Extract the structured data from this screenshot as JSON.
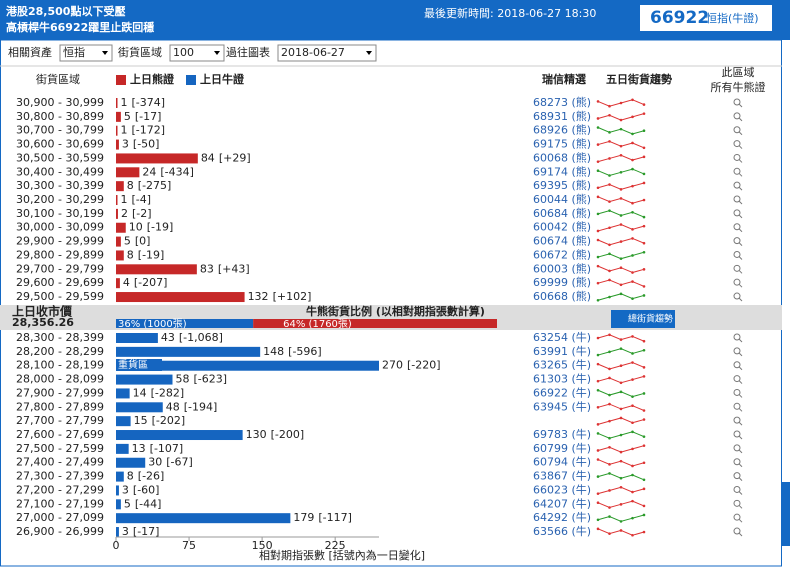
{
  "header": {
    "title_line1": "港股28,500點以下受壓",
    "title_line2": "高槓桿牛66922躍里止跌回穩",
    "updated": "最後更新時間: 2018-06-27 18:30",
    "code": "66922",
    "code_label": "恒指(牛證)"
  },
  "controls": [
    {
      "label": "相關資產",
      "value": "恒指"
    },
    {
      "label": "街貨區域",
      "value": "100"
    },
    {
      "label": "過往圖表",
      "value": "2018-06-27"
    }
  ],
  "columns": {
    "range": "街貨區域",
    "bear": "上日熊證",
    "bull": "上日牛證",
    "pick": "瑞信精選",
    "trend": "五日街貨趨勢",
    "all_line1": "此區域",
    "all_line2": "所有牛熊證"
  },
  "bear_rows": [
    {
      "range": "30,900 - 30,999",
      "value": 1,
      "change": "[-374]",
      "code": "68273 (熊)"
    },
    {
      "range": "30,800 - 30,899",
      "value": 5,
      "change": "[-17]",
      "code": "68931 (熊)"
    },
    {
      "range": "30,700 - 30,799",
      "value": 1,
      "change": "[-172]",
      "code": "68926 (熊)"
    },
    {
      "range": "30,600 - 30,699",
      "value": 3,
      "change": "[-50]",
      "code": "69175 (熊)"
    },
    {
      "range": "30,500 - 30,599",
      "value": 84,
      "change": "[+29]",
      "code": "60068 (熊)"
    },
    {
      "range": "30,400 - 30,499",
      "value": 24,
      "change": "[-434]",
      "code": "69174 (熊)"
    },
    {
      "range": "30,300 - 30,399",
      "value": 8,
      "change": "[-275]",
      "code": "69395 (熊)"
    },
    {
      "range": "30,200 - 30,299",
      "value": 1,
      "change": "[-4]",
      "code": "60044 (熊)"
    },
    {
      "range": "30,100 - 30,199",
      "value": 2,
      "change": "[-2]",
      "code": "60684 (熊)"
    },
    {
      "range": "30,000 - 30,099",
      "value": 10,
      "change": "[-19]",
      "code": "60042 (熊)"
    },
    {
      "range": "29,900 - 29,999",
      "value": 5,
      "change": "[0]",
      "code": "60674 (熊)"
    },
    {
      "range": "29,800 - 29,899",
      "value": 8,
      "change": "[-19]",
      "code": "60672 (熊)"
    },
    {
      "range": "29,700 - 29,799",
      "value": 83,
      "change": "[+43]",
      "code": "60003 (熊)"
    },
    {
      "range": "29,600 - 29,699",
      "value": 4,
      "change": "[-207]",
      "code": "69999 (熊)"
    },
    {
      "range": "29,500 - 29,599",
      "value": 132,
      "change": "[+102]",
      "code": "60668 (熊)"
    }
  ],
  "middle": {
    "close_label": "上日收市價",
    "close": "28,356.26",
    "ratio_title": "牛熊街貨比例 (以相對期指張數計算)",
    "bull_pct": 36,
    "bull_label": "36% (1000張)",
    "bear_pct": 64,
    "bear_label": "64% (1760張)",
    "button": "總街貨趨勢",
    "heavy": "重貨區"
  },
  "bull_rows": [
    {
      "range": "28,300 - 28,399",
      "value": 43,
      "change": "[-1,068]",
      "code": "63254 (牛)"
    },
    {
      "range": "28,200 - 28,299",
      "value": 148,
      "change": "[-596]",
      "code": "63991 (牛)"
    },
    {
      "range": "28,100 - 28,199",
      "value": 270,
      "change": "[-220]",
      "code": "63265 (牛)"
    },
    {
      "range": "28,000 - 28,099",
      "value": 58,
      "change": "[-623]",
      "code": "61303 (牛)"
    },
    {
      "range": "27,900 - 27,999",
      "value": 14,
      "change": "[-282]",
      "code": "66922 (牛)"
    },
    {
      "range": "27,800 - 27,899",
      "value": 48,
      "change": "[-194]",
      "code": "63945 (牛)"
    },
    {
      "range": "27,700 - 27,799",
      "value": 15,
      "change": "[-202]",
      "code": null
    },
    {
      "range": "27,600 - 27,699",
      "value": 130,
      "change": "[-200]",
      "code": "69783 (牛)"
    },
    {
      "range": "27,500 - 27,599",
      "value": 13,
      "change": "[-107]",
      "code": "60799 (牛)"
    },
    {
      "range": "27,400 - 27,499",
      "value": 30,
      "change": "[-67]",
      "code": "60794 (牛)"
    },
    {
      "range": "27,300 - 27,399",
      "value": 8,
      "change": "[-26]",
      "code": "63867 (牛)"
    },
    {
      "range": "27,200 - 27,299",
      "value": 3,
      "change": "[-60]",
      "code": "66023 (牛)"
    },
    {
      "range": "27,100 - 27,199",
      "value": 5,
      "change": "[-44]",
      "code": "64207 (牛)"
    },
    {
      "range": "27,000 - 27,099",
      "value": 179,
      "change": "[-117]",
      "code": "64292 (牛)"
    },
    {
      "range": "26,900 - 26,999",
      "value": 3,
      "change": "[-17]",
      "code": "63566 (牛)"
    }
  ],
  "axis": {
    "xlim": [
      0,
      270
    ],
    "xticks": [
      0,
      75,
      150,
      225
    ],
    "label": "相對期指張數 [括號內為一日變化]"
  }
}
